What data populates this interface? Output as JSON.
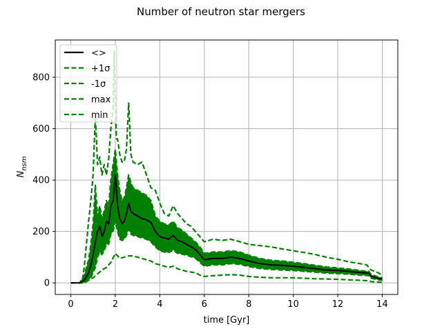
{
  "chart_data": {
    "type": "line",
    "title": "Number of neutron star mergers",
    "xlabel": "time [Gyr]",
    "ylabel_base": "N",
    "ylabel_sub": "nsm",
    "xlim": [
      -0.7,
      14.7
    ],
    "ylim": [
      -45,
      945
    ],
    "xticks": [
      0,
      2,
      4,
      6,
      8,
      10,
      12,
      14
    ],
    "yticks": [
      0,
      200,
      400,
      600,
      800
    ],
    "grid": true,
    "legend_position": "top-left",
    "colors": {
      "mean": "#000000",
      "band": "#008000"
    },
    "series": [
      {
        "name": "<>",
        "style": "solid",
        "x": [
          0,
          0.4,
          0.6,
          0.8,
          0.9,
          1.0,
          1.1,
          1.2,
          1.3,
          1.4,
          1.5,
          1.6,
          1.7,
          1.8,
          1.9,
          2.0,
          2.1,
          2.2,
          2.3,
          2.4,
          2.5,
          2.6,
          2.7,
          2.8,
          3.0,
          3.2,
          3.4,
          3.6,
          3.8,
          4.0,
          4.2,
          4.4,
          4.6,
          4.8,
          5.0,
          5.2,
          5.4,
          5.6,
          5.8,
          6.0,
          6.4,
          6.8,
          7.2,
          7.6,
          8.0,
          8.5,
          9.0,
          9.5,
          10.0,
          10.5,
          11.0,
          11.5,
          12.0,
          12.5,
          13.0,
          13.4,
          13.5,
          13.8,
          14.0
        ],
        "y": [
          0,
          0,
          10,
          40,
          70,
          110,
          160,
          200,
          220,
          180,
          200,
          240,
          230,
          300,
          320,
          420,
          300,
          250,
          230,
          240,
          270,
          310,
          280,
          270,
          260,
          250,
          245,
          235,
          200,
          180,
          175,
          170,
          185,
          165,
          160,
          150,
          140,
          130,
          110,
          90,
          95,
          95,
          100,
          95,
          85,
          75,
          70,
          68,
          65,
          60,
          55,
          50,
          48,
          45,
          40,
          38,
          25,
          18,
          15
        ]
      },
      {
        "name": "+1σ",
        "style": "dashed",
        "x": [
          0,
          0.4,
          0.6,
          0.8,
          0.9,
          1.0,
          1.1,
          1.2,
          1.3,
          1.4,
          1.5,
          1.6,
          1.7,
          1.8,
          1.9,
          2.0,
          2.1,
          2.2,
          2.3,
          2.4,
          2.5,
          2.6,
          2.7,
          2.8,
          3.0,
          3.2,
          3.4,
          3.6,
          3.8,
          4.0,
          4.2,
          4.4,
          4.6,
          4.8,
          5.0,
          5.2,
          5.4,
          5.6,
          5.8,
          6.0,
          6.4,
          6.8,
          7.2,
          7.6,
          8.0,
          8.5,
          9.0,
          9.5,
          10.0,
          10.5,
          11.0,
          11.5,
          12.0,
          12.5,
          13.0,
          13.4,
          13.5,
          13.8,
          14.0
        ],
        "y": [
          0,
          0,
          30,
          90,
          150,
          230,
          380,
          260,
          300,
          250,
          280,
          320,
          300,
          400,
          460,
          520,
          420,
          360,
          320,
          330,
          370,
          420,
          390,
          370,
          360,
          350,
          340,
          320,
          260,
          240,
          230,
          225,
          240,
          215,
          205,
          190,
          175,
          160,
          140,
          115,
          120,
          120,
          125,
          120,
          108,
          95,
          88,
          85,
          80,
          75,
          68,
          62,
          58,
          54,
          48,
          45,
          32,
          24,
          20
        ]
      },
      {
        "name": "-1σ",
        "style": "dashed",
        "x": [
          0,
          0.4,
          0.6,
          0.8,
          0.9,
          1.0,
          1.1,
          1.2,
          1.3,
          1.4,
          1.5,
          1.6,
          1.7,
          1.8,
          1.9,
          2.0,
          2.1,
          2.2,
          2.3,
          2.4,
          2.5,
          2.6,
          2.7,
          2.8,
          3.0,
          3.2,
          3.4,
          3.6,
          3.8,
          4.0,
          4.2,
          4.4,
          4.6,
          4.8,
          5.0,
          5.2,
          5.4,
          5.6,
          5.8,
          6.0,
          6.4,
          6.8,
          7.2,
          7.6,
          8.0,
          8.5,
          9.0,
          9.5,
          10.0,
          10.5,
          11.0,
          11.5,
          12.0,
          12.5,
          13.0,
          13.4,
          13.5,
          13.8,
          14.0
        ],
        "y": [
          0,
          0,
          0,
          10,
          20,
          40,
          60,
          100,
          120,
          110,
          125,
          150,
          150,
          190,
          200,
          240,
          200,
          170,
          165,
          170,
          185,
          210,
          190,
          185,
          180,
          175,
          170,
          160,
          140,
          125,
          120,
          118,
          128,
          115,
          112,
          108,
          102,
          96,
          80,
          65,
          70,
          70,
          75,
          72,
          64,
          56,
          52,
          50,
          48,
          45,
          42,
          38,
          36,
          34,
          30,
          28,
          18,
          12,
          10
        ]
      },
      {
        "name": "max",
        "style": "dashed",
        "x": [
          0,
          0.5,
          0.6,
          0.7,
          0.8,
          0.9,
          1.0,
          1.1,
          1.15,
          1.2,
          1.3,
          1.4,
          1.5,
          1.6,
          1.7,
          1.8,
          1.9,
          1.95,
          2.0,
          2.05,
          2.1,
          2.2,
          2.3,
          2.4,
          2.5,
          2.6,
          2.7,
          2.8,
          3.0,
          3.2,
          3.4,
          3.6,
          3.8,
          4.0,
          4.2,
          4.4,
          4.6,
          4.8,
          5.0,
          5.2,
          5.4,
          5.6,
          5.8,
          6.0,
          6.4,
          6.8,
          7.2,
          7.6,
          8.0,
          8.5,
          9.0,
          9.5,
          10.0,
          10.5,
          11.0,
          11.5,
          12.0,
          12.5,
          13.0,
          13.3,
          13.5,
          13.8,
          14.0
        ],
        "y": [
          0,
          0,
          60,
          150,
          240,
          320,
          420,
          650,
          560,
          460,
          490,
          420,
          460,
          420,
          480,
          600,
          680,
          900,
          700,
          560,
          560,
          500,
          470,
          470,
          520,
          700,
          500,
          470,
          460,
          470,
          420,
          370,
          360,
          310,
          270,
          260,
          300,
          270,
          250,
          230,
          220,
          200,
          180,
          160,
          170,
          165,
          170,
          160,
          150,
          145,
          140,
          132,
          125,
          118,
          110,
          100,
          92,
          82,
          75,
          70,
          50,
          40,
          30
        ]
      },
      {
        "name": "min",
        "style": "dashed",
        "x": [
          0,
          0.5,
          0.6,
          0.8,
          1.0,
          1.2,
          1.4,
          1.6,
          1.8,
          2.0,
          2.2,
          2.4,
          2.6,
          2.8,
          3.0,
          3.2,
          3.4,
          3.6,
          3.8,
          4.0,
          4.2,
          4.4,
          4.6,
          4.8,
          5.0,
          5.2,
          5.4,
          5.6,
          5.8,
          6.0,
          6.4,
          6.8,
          7.2,
          7.6,
          8.0,
          8.5,
          9.0,
          9.5,
          10.0,
          10.5,
          11.0,
          11.5,
          12.0,
          12.5,
          13.0,
          13.4,
          13.5,
          13.8,
          14.0
        ],
        "y": [
          0,
          0,
          0,
          10,
          20,
          35,
          50,
          60,
          80,
          115,
          95,
          100,
          105,
          105,
          100,
          95,
          90,
          85,
          75,
          70,
          65,
          60,
          65,
          55,
          50,
          45,
          42,
          40,
          30,
          25,
          28,
          30,
          32,
          30,
          25,
          22,
          20,
          20,
          20,
          18,
          16,
          15,
          14,
          12,
          10,
          8,
          5,
          3,
          2
        ]
      }
    ]
  }
}
